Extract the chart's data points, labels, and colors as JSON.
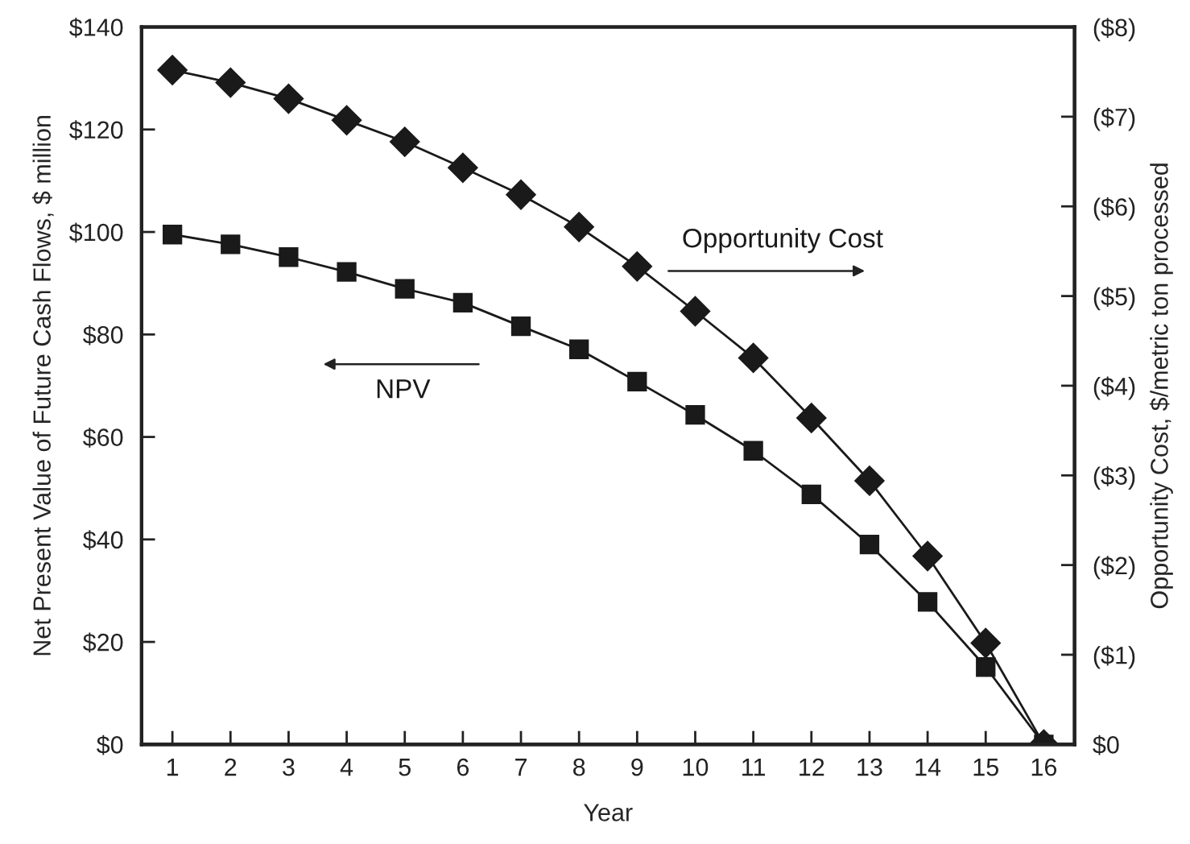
{
  "chart_data": {
    "type": "line",
    "xlabel": "Year",
    "ylabel": "Net Present Value of Future Cash Flows, $ million",
    "y2label": "Opportunity Cost, $/metric ton processed",
    "categories": [
      "1",
      "2",
      "3",
      "4",
      "5",
      "6",
      "7",
      "8",
      "9",
      "10",
      "11",
      "12",
      "13",
      "14",
      "15",
      "16"
    ],
    "series": [
      {
        "name": "NPV",
        "color": "#1a1a1a",
        "marker": "square",
        "axis": "y",
        "values": [
          99.5,
          97.6,
          95.1,
          92.2,
          88.9,
          86.2,
          81.6,
          77.1,
          70.8,
          64.3,
          57.3,
          48.8,
          39.0,
          27.8,
          15.1,
          0
        ]
      },
      {
        "name": "Opportunity Cost",
        "color": "#1a1a1a",
        "marker": "diamond",
        "axis": "y2",
        "values": [
          7.52,
          7.38,
          7.2,
          6.96,
          6.72,
          6.43,
          6.13,
          5.77,
          5.33,
          4.83,
          4.31,
          3.64,
          2.94,
          2.1,
          1.13,
          0
        ]
      }
    ],
    "ylim": [
      0,
      140
    ],
    "yticks": [
      {
        "value": 0,
        "label": "$0"
      },
      {
        "value": 20,
        "label": "$20"
      },
      {
        "value": 40,
        "label": "$40"
      },
      {
        "value": 60,
        "label": "$60"
      },
      {
        "value": 80,
        "label": "$80"
      },
      {
        "value": 100,
        "label": "$100"
      },
      {
        "value": 120,
        "label": "$120"
      },
      {
        "value": 140,
        "label": "$140"
      }
    ],
    "y2lim": [
      0,
      8
    ],
    "y2ticks": [
      {
        "value": 0,
        "label": "$0"
      },
      {
        "value": 1,
        "label": "($1)"
      },
      {
        "value": 2,
        "label": "($2)"
      },
      {
        "value": 3,
        "label": "($3)"
      },
      {
        "value": 4,
        "label": "($4)"
      },
      {
        "value": 5,
        "label": "($5)"
      },
      {
        "value": 6,
        "label": "($6)"
      },
      {
        "value": 7,
        "label": "($7)"
      },
      {
        "value": 8,
        "label": "($8)"
      }
    ],
    "line_style": "solid",
    "grid": false,
    "legend": false
  }
}
